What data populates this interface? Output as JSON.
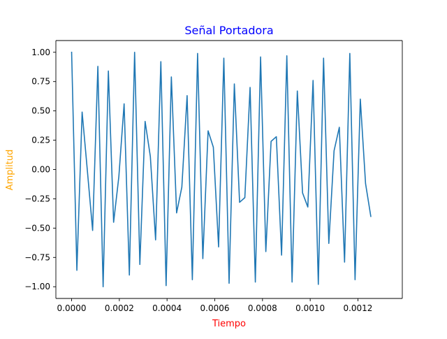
{
  "chart_data": {
    "type": "line",
    "title": "Señal Portadora",
    "xlabel": "Tiempo",
    "ylabel": "Amplitud",
    "xlim": [
      -6.6e-05,
      0.001386
    ],
    "ylim": [
      -1.1,
      1.1
    ],
    "xticks": [
      0.0,
      0.0002,
      0.0004,
      0.0006,
      0.0008,
      0.001,
      0.0012
    ],
    "xtick_labels": [
      "0.0000",
      "0.0002",
      "0.0004",
      "0.0006",
      "0.0008",
      "0.0010",
      "0.0012"
    ],
    "yticks": [
      -1.0,
      -0.75,
      -0.5,
      -0.25,
      0.0,
      0.25,
      0.5,
      0.75,
      1.0
    ],
    "ytick_labels": [
      "−1.00",
      "−0.75",
      "−0.50",
      "−0.25",
      "0.00",
      "0.25",
      "0.50",
      "0.75",
      "1.00"
    ],
    "grid": false,
    "series": [
      {
        "color": "#1f77b4",
        "x_start": 0.0,
        "x_step": 2.2e-05,
        "values": [
          1.0,
          -0.86,
          0.49,
          -0.01,
          -0.52,
          0.88,
          -1.0,
          0.84,
          -0.45,
          -0.06,
          0.56,
          -0.9,
          1.0,
          -0.81,
          0.41,
          0.11,
          -0.6,
          0.92,
          -0.99,
          0.79,
          -0.37,
          -0.15,
          0.63,
          -0.94,
          0.99,
          -0.76,
          0.33,
          0.19,
          -0.66,
          0.95,
          -0.97,
          0.73,
          -0.28,
          -0.24,
          0.7,
          -0.96,
          0.96,
          -0.7,
          0.24,
          0.28,
          -0.73,
          0.97,
          -0.96,
          0.67,
          -0.2,
          -0.32,
          0.76,
          -0.98,
          0.95,
          -0.63,
          0.16,
          0.36,
          -0.79,
          0.99,
          -0.94,
          0.6,
          -0.12,
          -0.4
        ]
      }
    ],
    "colors": {
      "title": "#0000ff",
      "xlabel": "#ff0000",
      "ylabel": "#ffa500",
      "axes": "#000000"
    }
  }
}
